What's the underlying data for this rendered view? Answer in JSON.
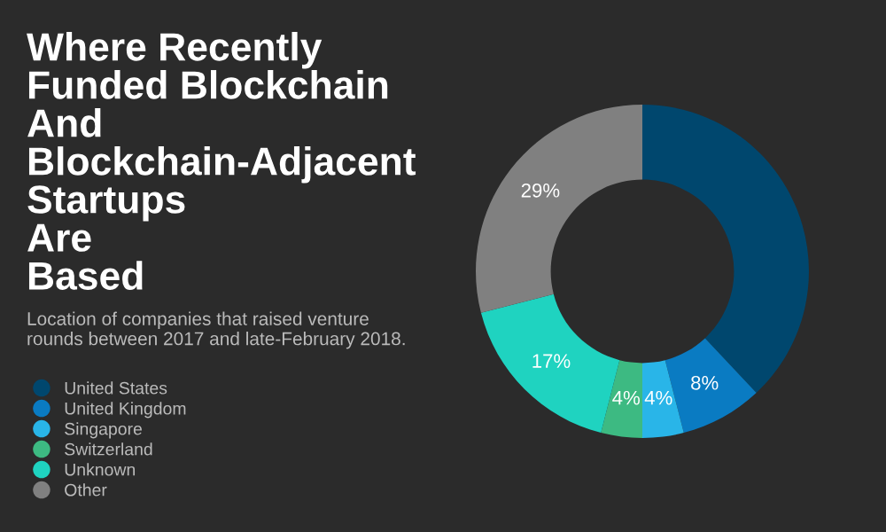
{
  "chart_data": {
    "type": "donut",
    "title": "Where Recently Funded Blockchain And Blockchain-Adjacent Startups Are Based",
    "subtitle": "Location of companies that raised venture rounds between 2017 and late-February 2018.",
    "categories": [
      "United States",
      "United Kingdom",
      "Singapore",
      "Switzerland",
      "Unknown",
      "Other"
    ],
    "values": [
      38,
      8,
      4,
      4,
      17,
      29
    ],
    "colors": [
      "#00476e",
      "#0a7bc2",
      "#29b5e8",
      "#3dba82",
      "#1fd3c0",
      "#808080"
    ],
    "value_labels": [
      null,
      "8%",
      "4%",
      "4%",
      "17%",
      "29%"
    ],
    "legend": "left"
  }
}
